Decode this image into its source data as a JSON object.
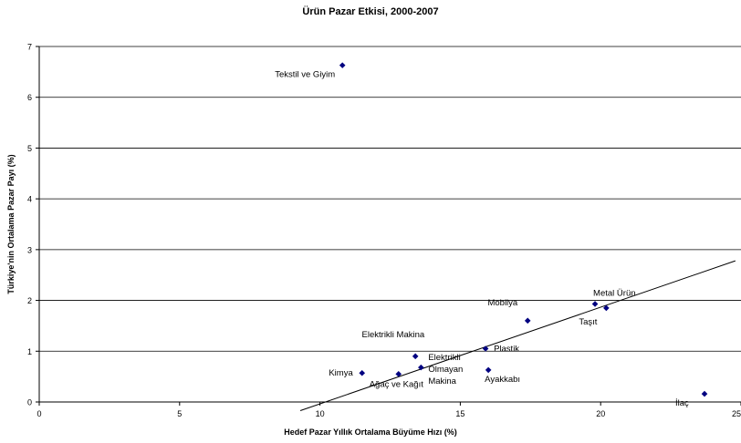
{
  "chart_data": {
    "type": "scatter",
    "title": "Ürün Pazar Etkisi, 2000-2007",
    "xlabel": "Hedef Pazar Yıllık Ortalama Büyüme Hızı (%)",
    "ylabel": "Türkiye'nin Ortalama Pazar Payı (%)",
    "xlim": [
      0,
      25
    ],
    "ylim": [
      0,
      7
    ],
    "x_ticks": [
      "0",
      "5",
      "10",
      "15",
      "20",
      "25"
    ],
    "y_ticks": [
      "0",
      "1",
      "2",
      "3",
      "4",
      "5",
      "6",
      "7"
    ],
    "grid": "horizontal",
    "marker_color": "#000080",
    "points": [
      {
        "label": "Tekstil ve Giyim",
        "x": 10.8,
        "y": 6.63
      },
      {
        "label": "Kimya",
        "x": 11.5,
        "y": 0.57
      },
      {
        "label": "Ağaç ve Kağıt",
        "x": 12.8,
        "y": 0.55
      },
      {
        "label": "Elektrikli Makina",
        "x": 13.4,
        "y": 0.9
      },
      {
        "label": "Elektrikli Olmayan Makina",
        "x": 13.6,
        "y": 0.68
      },
      {
        "label": "Plastik",
        "x": 15.9,
        "y": 1.05
      },
      {
        "label": "Ayakkabı",
        "x": 16.0,
        "y": 0.63
      },
      {
        "label": "Mobilya",
        "x": 17.4,
        "y": 1.6
      },
      {
        "label": "Metal Ürün",
        "x": 19.8,
        "y": 1.93
      },
      {
        "label": "Taşıt",
        "x": 20.2,
        "y": 1.85
      },
      {
        "label": "İlaç",
        "x": 23.7,
        "y": 0.16
      }
    ],
    "trendline": {
      "x": [
        9.3,
        24.8
      ],
      "y": [
        -0.17,
        2.78
      ]
    }
  }
}
